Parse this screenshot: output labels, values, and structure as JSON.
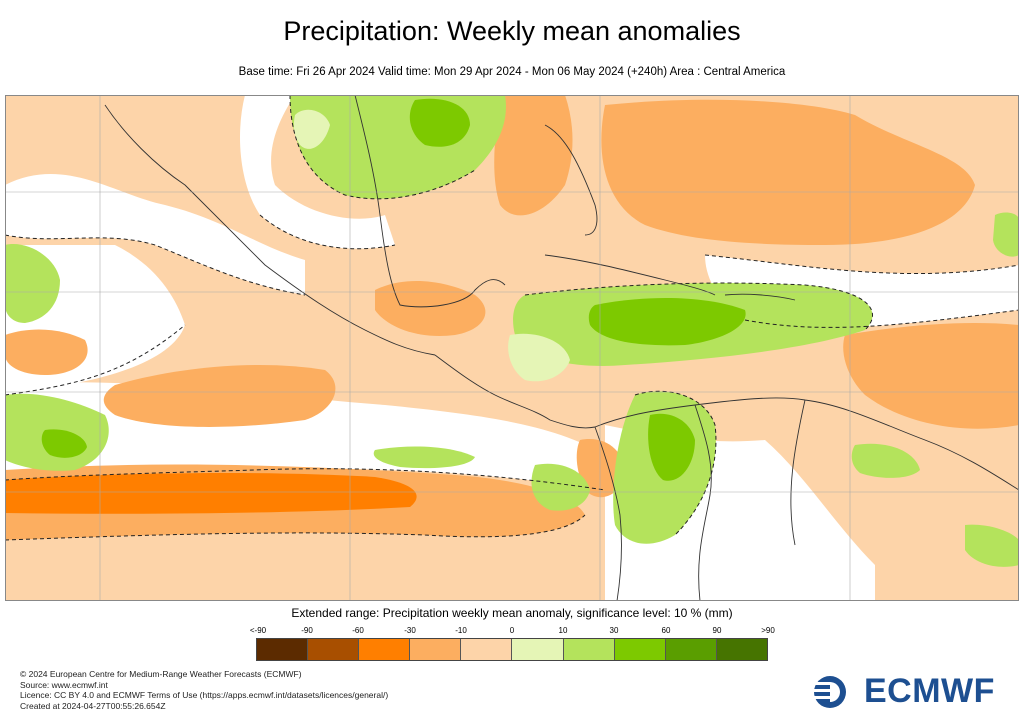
{
  "header": {
    "title": "Precipitation: Weekly mean anomalies",
    "subtitle": "Base time: Fri 26 Apr 2024 Valid time: Mon 29 Apr 2024 - Mon 06 May 2024 (+240h) Area : Central America"
  },
  "legend": {
    "title": "Extended range: Precipitation weekly mean anomaly, significance level: 10 % (mm)",
    "labels": [
      "<-90",
      "-90",
      "-60",
      "-30",
      "-10",
      "0",
      "10",
      "30",
      "60",
      "90",
      ">90"
    ],
    "colors": [
      "#5c2b00",
      "#a84f00",
      "#ff7f00",
      "#fcae60",
      "#fdd4a9",
      "#e5f5b6",
      "#b4e35c",
      "#7dc900",
      "#5a9e00",
      "#467400"
    ]
  },
  "footer": {
    "line1": "© 2024 European Centre for Medium-Range Weather Forecasts (ECMWF)",
    "line2": "Source: www.ecmwf.int",
    "line3": "Licence: CC BY 4.0 and ECMWF Terms of Use (https://apps.ecmwf.int/datasets/licences/general/)",
    "line4": "Created at 2024-04-27T00:55:26.654Z"
  },
  "logo": {
    "text": "ECMWF"
  },
  "map_colors": {
    "light_orange": "#fdd4a9",
    "orange": "#fcae60",
    "dark_orange": "#ff7f00",
    "light_green": "#e5f5b6",
    "green": "#b4e35c",
    "dark_green": "#7dc900"
  }
}
